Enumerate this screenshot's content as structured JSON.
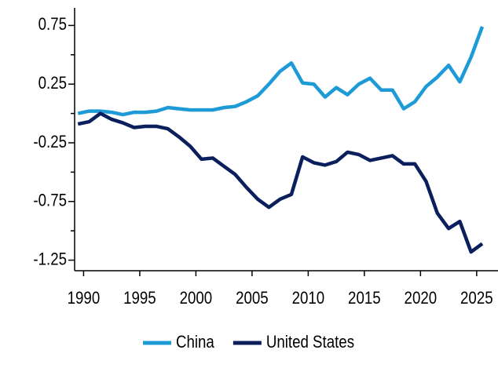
{
  "chart_data": {
    "type": "line",
    "x": [
      1989.5,
      1990.5,
      1991.5,
      1992.5,
      1993.5,
      1994.5,
      1995.5,
      1996.5,
      1997.5,
      1998.5,
      1999.5,
      2000.5,
      2001.5,
      2002.5,
      2003.5,
      2004.5,
      2005.5,
      2006.5,
      2007.5,
      2008.5,
      2009.5,
      2010.5,
      2011.5,
      2012.5,
      2013.5,
      2014.5,
      2015.5,
      2016.5,
      2017.5,
      2018.5,
      2019.5,
      2020.5,
      2021.5,
      2022.5,
      2023.5,
      2024.5,
      2025.5
    ],
    "series": [
      {
        "name": "China",
        "color": "#1e9bd7",
        "values": [
          0.0,
          0.02,
          0.02,
          0.01,
          -0.01,
          0.01,
          0.01,
          0.02,
          0.05,
          0.04,
          0.03,
          0.03,
          0.03,
          0.05,
          0.06,
          0.1,
          0.15,
          0.25,
          0.36,
          0.43,
          0.26,
          0.25,
          0.14,
          0.22,
          0.16,
          0.25,
          0.3,
          0.2,
          0.2,
          0.04,
          0.1,
          0.23,
          0.31,
          0.41,
          0.27,
          0.48,
          0.74
        ]
      },
      {
        "name": "United States",
        "color": "#0a1f5c",
        "values": [
          -0.09,
          -0.07,
          0.0,
          -0.05,
          -0.08,
          -0.12,
          -0.11,
          -0.11,
          -0.13,
          -0.2,
          -0.28,
          -0.39,
          -0.38,
          -0.45,
          -0.52,
          -0.63,
          -0.73,
          -0.8,
          -0.73,
          -0.69,
          -0.37,
          -0.42,
          -0.44,
          -0.41,
          -0.33,
          -0.35,
          -0.4,
          -0.38,
          -0.36,
          -0.43,
          -0.43,
          -0.58,
          -0.85,
          -0.98,
          -0.92,
          -1.18,
          -1.11
        ]
      }
    ],
    "xlim": [
      1989.2,
      2026.9
    ],
    "xticks": [
      1990,
      1995,
      2000,
      2005,
      2010,
      2015,
      2020,
      2025
    ],
    "ylim": [
      -1.34,
      0.9
    ],
    "yticks": [
      0.75,
      0.25,
      -0.25,
      -0.75,
      -1.25
    ],
    "yminorticks": [
      0.5,
      0,
      -0.5,
      -1
    ],
    "legend": "bottom"
  }
}
